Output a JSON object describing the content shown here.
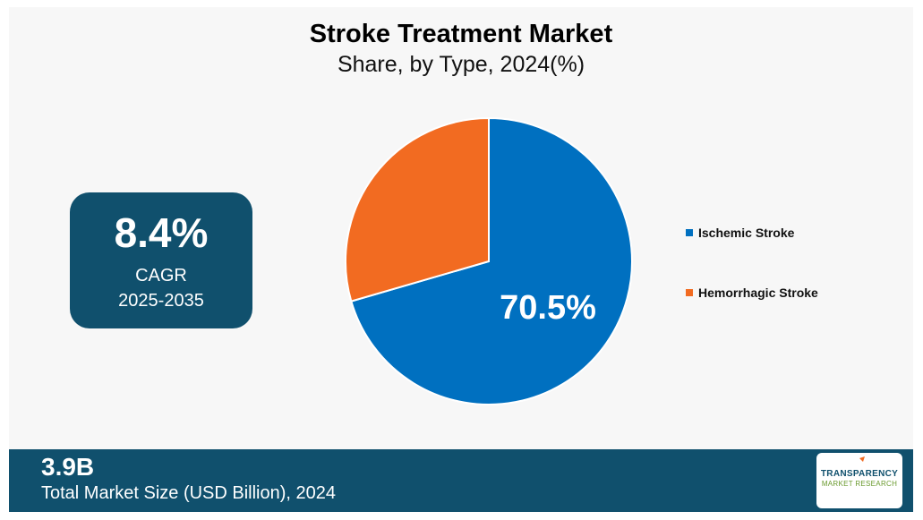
{
  "colors": {
    "background": "#f7f7f7",
    "panel": "#10506d",
    "ischemic": "#0070c0",
    "hemorrhagic": "#f26b21"
  },
  "highlight": {
    "cagr_value": "8.4%",
    "cagr_label": "CAGR",
    "cagr_period": "2025-2035"
  },
  "footer": {
    "market_size_value": "3.9B",
    "market_size_label": "Total Market Size (USD Billion), 2024"
  },
  "logo": {
    "line1": "TRANSPARENCY",
    "line2": "MARKET RESEARCH"
  },
  "chart_data": {
    "type": "pie",
    "title": "Stroke Treatment Market",
    "subtitle": "Share, by Type, 2024(%)",
    "categories": [
      "Ischemic Stroke",
      "Hemorrhagic Stroke"
    ],
    "values": [
      70.5,
      29.5
    ],
    "data_labels": [
      "70.5%",
      ""
    ],
    "legend_position": "right"
  }
}
